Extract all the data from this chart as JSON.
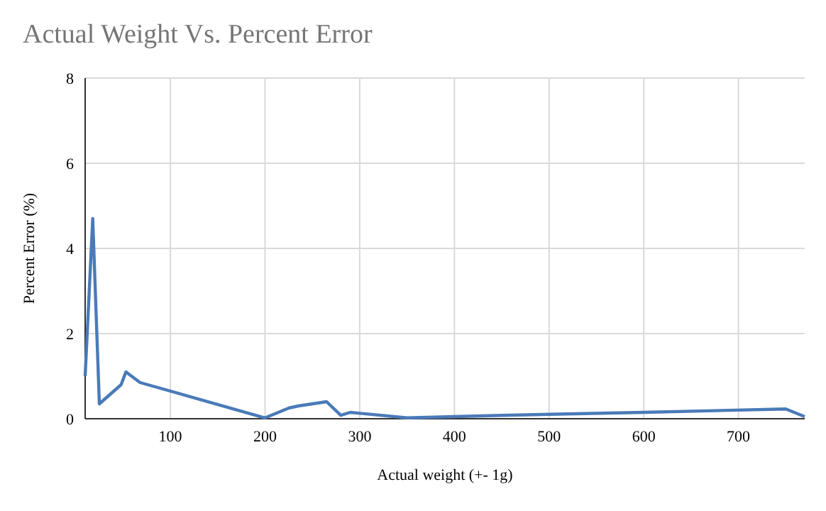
{
  "chart_data": {
    "type": "line",
    "title": "Actual Weight Vs. Percent Error",
    "xlabel": "Actual weight (+- 1g)",
    "ylabel": "Percent Error (%)",
    "x": [
      10,
      18,
      25,
      48,
      53,
      68,
      200,
      225,
      235,
      265,
      280,
      290,
      350,
      450,
      600,
      750,
      770
    ],
    "series": [
      {
        "color": "#4a7ab8",
        "values": [
          1.0,
          4.7,
          0.35,
          0.8,
          1.1,
          0.85,
          0.02,
          0.25,
          0.3,
          0.4,
          0.08,
          0.15,
          0.02,
          0.08,
          0.15,
          0.23,
          0.05
        ]
      }
    ],
    "xlim": [
      10,
      770
    ],
    "xticks": [
      100,
      200,
      300,
      400,
      500,
      600,
      700
    ],
    "ylim": [
      0,
      8
    ],
    "yticks": [
      0,
      2,
      4,
      6,
      8
    ],
    "grid": true,
    "marker": "none",
    "line_style": "solid"
  }
}
